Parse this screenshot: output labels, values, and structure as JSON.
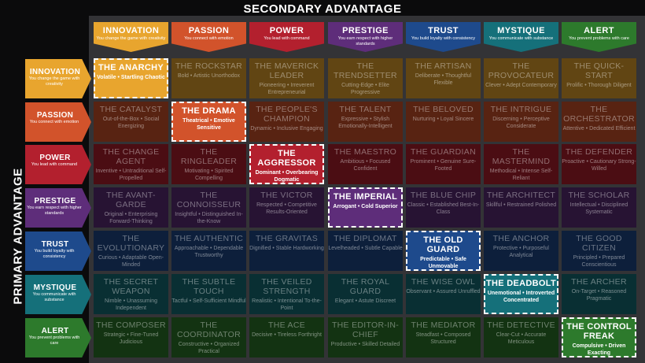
{
  "titles": {
    "secondary": "SECONDARY ADVANTAGE",
    "primary": "PRIMARY ADVANTAGE"
  },
  "colors": {
    "innovation": "#e8a52e",
    "passion": "#d2532b",
    "power": "#b3202e",
    "prestige": "#5e2d7a",
    "trust": "#1e4a8c",
    "mystique": "#15707a",
    "alert": "#2d7a2c"
  },
  "advantages": [
    {
      "name": "INNOVATION",
      "sub": "You change the game with creativity"
    },
    {
      "name": "PASSION",
      "sub": "You connect with emotion"
    },
    {
      "name": "POWER",
      "sub": "You lead with command"
    },
    {
      "name": "PRESTIGE",
      "sub": "You earn respect with higher standards"
    },
    {
      "name": "TRUST",
      "sub": "You build loyalty with consistency"
    },
    {
      "name": "MYSTIQUE",
      "sub": "You communicate with substance"
    },
    {
      "name": "ALERT",
      "sub": "You prevent problems with care"
    }
  ],
  "grid": [
    [
      {
        "name": "THE ANARCHY",
        "traits": "Volatile • Startling Chaotic"
      },
      {
        "name": "THE ROCKSTAR",
        "traits": "Bold • Artistic Unorthodox"
      },
      {
        "name": "THE MAVERICK LEADER",
        "traits": "Pioneering • Irreverent Entrepreneurial"
      },
      {
        "name": "THE TRENDSETTER",
        "traits": "Cutting-Edge • Elite Progressive"
      },
      {
        "name": "THE ARTISAN",
        "traits": "Deliberate • Thoughtful Flexible"
      },
      {
        "name": "THE PROVOCATEUR",
        "traits": "Clever • Adept Contemporary"
      },
      {
        "name": "THE QUICK-START",
        "traits": "Prolific • Thorough Diligent"
      }
    ],
    [
      {
        "name": "THE CATALYST",
        "traits": "Out-of-the-Box • Social Energizing"
      },
      {
        "name": "THE DRAMA",
        "traits": "Theatrical • Emotive Sensitive"
      },
      {
        "name": "THE PEOPLE'S CHAMPION",
        "traits": "Dynamic • Inclusive Engaging"
      },
      {
        "name": "THE TALENT",
        "traits": "Expressive • Stylish Emotionally-Intelligent"
      },
      {
        "name": "THE BELOVED",
        "traits": "Nurturing • Loyal Sincere"
      },
      {
        "name": "THE INTRIGUE",
        "traits": "Discerning • Perceptive Considerate"
      },
      {
        "name": "THE ORCHESTRATOR",
        "traits": "Attentive • Dedicated Efficient"
      }
    ],
    [
      {
        "name": "THE CHANGE AGENT",
        "traits": "Inventive • Untraditional Self-Propelled"
      },
      {
        "name": "THE RINGLEADER",
        "traits": "Motivating • Spirited Compelling"
      },
      {
        "name": "THE AGGRESSOR",
        "traits": "Dominant • Overbearing Dogmatic"
      },
      {
        "name": "THE MAESTRO",
        "traits": "Ambitious • Focused Confident"
      },
      {
        "name": "THE GUARDIAN",
        "traits": "Prominent • Genuine Sure-Footed"
      },
      {
        "name": "THE MASTERMIND",
        "traits": "Methodical • Intense Self-Reliant"
      },
      {
        "name": "THE DEFENDER",
        "traits": "Proactive • Cautionary Strong-Willed"
      }
    ],
    [
      {
        "name": "THE AVANT-GARDE",
        "traits": "Original • Enterprising Forward-Thinking"
      },
      {
        "name": "THE CONNOISSEUR",
        "traits": "Insightful • Distinguished In-the-Know"
      },
      {
        "name": "THE VICTOR",
        "traits": "Respected • Competitive Results-Oriented"
      },
      {
        "name": "THE IMPERIAL",
        "traits": "Arrogant • Cold Superior"
      },
      {
        "name": "THE BLUE CHIP",
        "traits": "Classic • Established Best-In-Class"
      },
      {
        "name": "THE ARCHITECT",
        "traits": "Skillful • Restrained Polished"
      },
      {
        "name": "THE SCHOLAR",
        "traits": "Intellectual • Disciplined Systematic"
      }
    ],
    [
      {
        "name": "THE EVOLUTIONARY",
        "traits": "Curious • Adaptable Open-Minded"
      },
      {
        "name": "THE AUTHENTIC",
        "traits": "Approachable • Dependable Trustworthy"
      },
      {
        "name": "THE GRAVITAS",
        "traits": "Dignified • Stable Hardworking"
      },
      {
        "name": "THE DIPLOMAT",
        "traits": "Levelheaded • Subtle Capable"
      },
      {
        "name": "THE OLD GUARD",
        "traits": "Predictable • Safe Unmovable"
      },
      {
        "name": "THE ANCHOR",
        "traits": "Protective • Purposeful Analytical"
      },
      {
        "name": "THE GOOD CITIZEN",
        "traits": "Principled • Prepared Conscientious"
      }
    ],
    [
      {
        "name": "THE SECRET WEAPON",
        "traits": "Nimble • Unassuming Independent"
      },
      {
        "name": "THE SUBTLE TOUCH",
        "traits": "Tactful • Self-Sufficient Mindful"
      },
      {
        "name": "THE VEILED STRENGTH",
        "traits": "Realistic • Intentional To-the-Point"
      },
      {
        "name": "THE ROYAL GUARD",
        "traits": "Elegant • Astute Discreet"
      },
      {
        "name": "THE WISE OWL",
        "traits": "Observant • Assured Unruffled"
      },
      {
        "name": "THE DEADBOLT",
        "traits": "Unemotional • Introverted Concentrated"
      },
      {
        "name": "THE ARCHER",
        "traits": "On-Target • Reasoned Pragmatic"
      }
    ],
    [
      {
        "name": "THE COMPOSER",
        "traits": "Strategic • Fine-Tuned Judicious"
      },
      {
        "name": "THE COORDINATOR",
        "traits": "Constructive • Organized Practical"
      },
      {
        "name": "THE ACE",
        "traits": "Decisive • Tireless Forthright"
      },
      {
        "name": "THE EDITOR-IN-CHIEF",
        "traits": "Productive • Skilled Detailed"
      },
      {
        "name": "THE MEDIATOR",
        "traits": "Steadfast • Composed Structured"
      },
      {
        "name": "THE DETECTIVE",
        "traits": "Clear-Cut • Accurate Meticulous"
      },
      {
        "name": "THE CONTROL FREAK",
        "traits": "Compulsive • Driven Exacting"
      }
    ]
  ]
}
